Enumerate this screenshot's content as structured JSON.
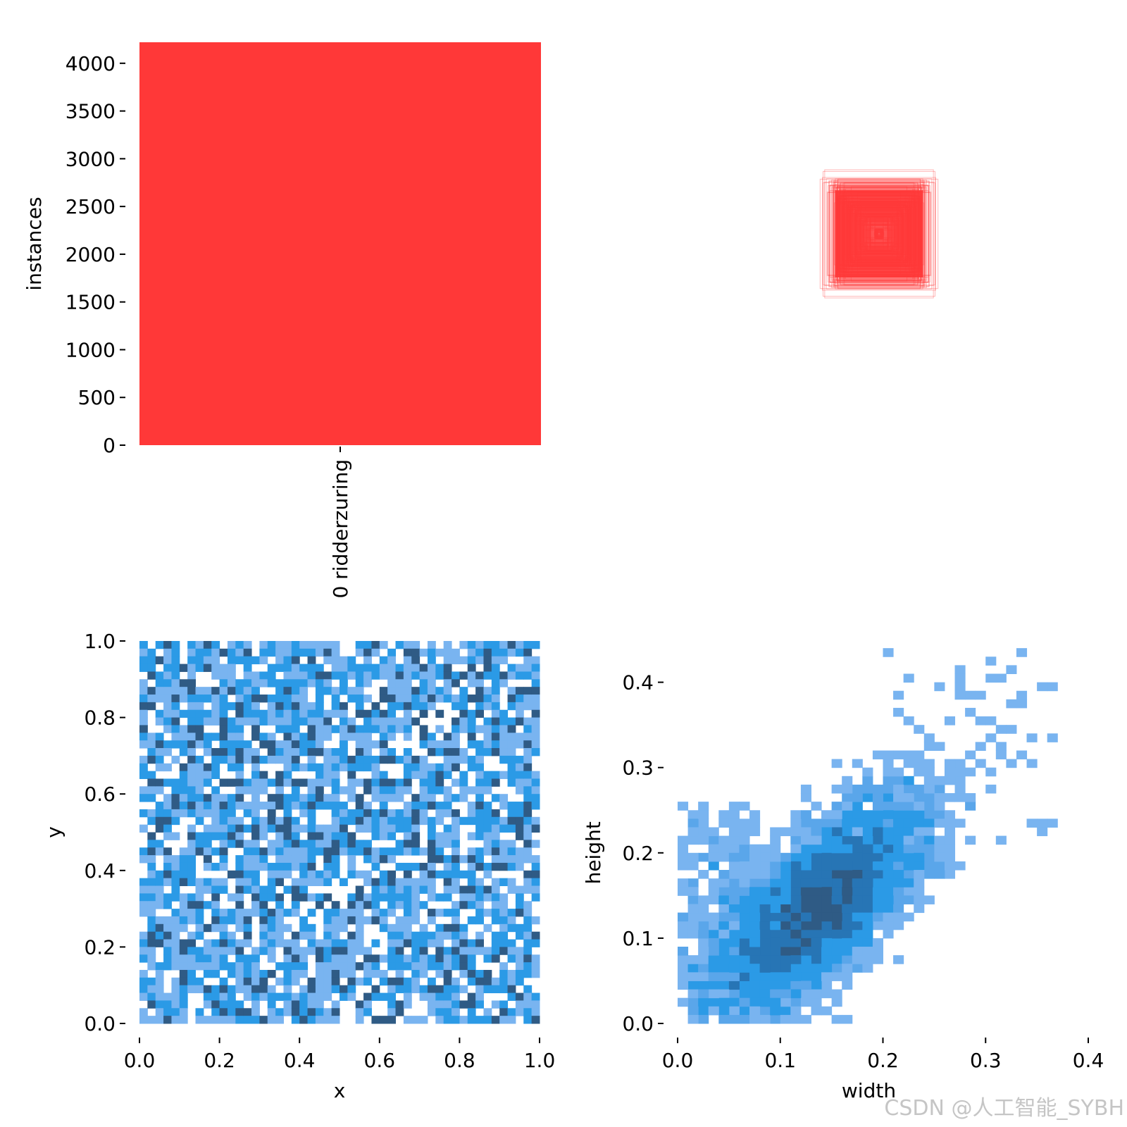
{
  "colors": {
    "bar": "#ff3838",
    "box_stroke": "#ff3838",
    "hist_light": "#79b4f0",
    "hist_mid": "#2b9ae6",
    "hist_dark": "#2f5b85",
    "axis": "#000000"
  },
  "watermark": "CSDN @人工智能_SYBH",
  "chart_data": [
    {
      "id": "instances",
      "type": "bar",
      "categories": [
        "0 ridderzuring"
      ],
      "values": [
        4220
      ],
      "xlabel": "",
      "ylabel": "instances",
      "ylim": [
        0,
        4220
      ],
      "yticks": [
        0,
        500,
        1000,
        1500,
        2000,
        2500,
        3000,
        3500,
        4000
      ],
      "ytick_labels": [
        "0",
        "500",
        "1000",
        "1500",
        "2000",
        "2500",
        "3000",
        "3500",
        "4000"
      ],
      "grid": false
    },
    {
      "id": "boxes",
      "type": "scatter",
      "description": "overlaid bounding boxes centered at the same point",
      "center": [
        0.5,
        0.5
      ],
      "box_sizes": {
        "w_range": [
          0.002,
          0.38
        ],
        "h_range": [
          0.002,
          0.43
        ],
        "count": 4220
      },
      "xlabel": "",
      "ylabel": "",
      "grid": false
    },
    {
      "id": "xy",
      "type": "heatmap",
      "xlabel": "x",
      "ylabel": "y",
      "xlim": [
        0.0,
        1.0
      ],
      "ylim": [
        0.0,
        1.0
      ],
      "bins": [
        50,
        50
      ],
      "distribution": "uniform",
      "xticks": [
        0.0,
        0.2,
        0.4,
        0.6,
        0.8,
        1.0
      ],
      "xtick_labels": [
        "0.0",
        "0.2",
        "0.4",
        "0.6",
        "0.8",
        "1.0"
      ],
      "yticks": [
        0.0,
        0.2,
        0.4,
        0.6,
        0.8,
        1.0
      ],
      "ytick_labels": [
        "0.0",
        "0.2",
        "0.4",
        "0.6",
        "0.8",
        "1.0"
      ],
      "grid": false
    },
    {
      "id": "wh",
      "type": "heatmap",
      "xlabel": "width",
      "ylabel": "height",
      "xlim": [
        0.0,
        0.4
      ],
      "ylim": [
        0.0,
        0.45
      ],
      "bins": [
        40,
        45
      ],
      "distribution": "correlated cluster",
      "mean": [
        0.14,
        0.14
      ],
      "xticks": [
        0.0,
        0.1,
        0.2,
        0.3,
        0.4
      ],
      "xtick_labels": [
        "0.0",
        "0.1",
        "0.2",
        "0.3",
        "0.4"
      ],
      "yticks": [
        0.0,
        0.1,
        0.2,
        0.3,
        0.4
      ],
      "ytick_labels": [
        "0.0",
        "0.1",
        "0.2",
        "0.3",
        "0.4"
      ],
      "grid": false
    }
  ]
}
